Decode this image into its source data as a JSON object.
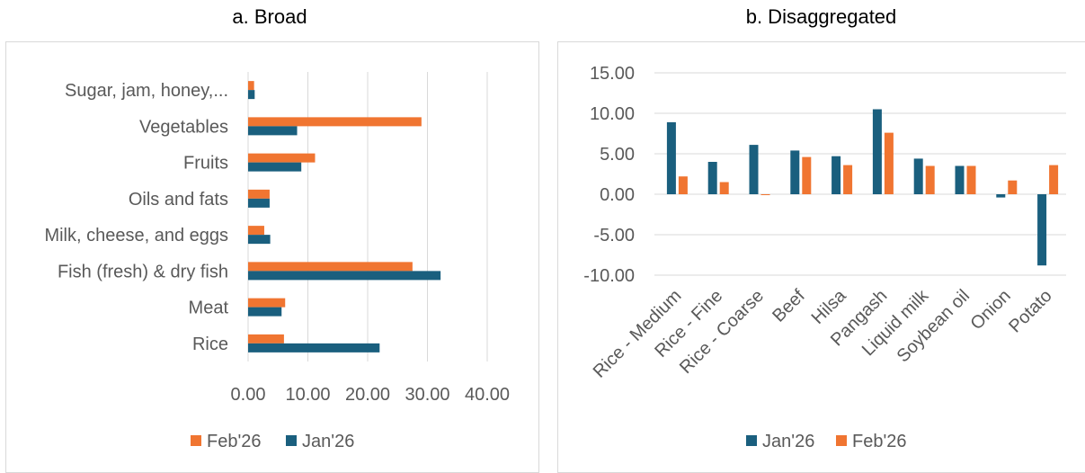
{
  "colors": {
    "jan": "#1a5f7e",
    "feb": "#f07531",
    "grid": "#d9d9d9"
  },
  "chart_data": [
    {
      "type": "bar",
      "orientation": "horizontal",
      "title": "a. Broad",
      "categories": [
        "Sugar, jam, honey,...",
        "Vegetables",
        "Fruits",
        "Oils and fats",
        "Milk, cheese, and eggs",
        "Fish (fresh) & dry fish",
        "Meat",
        "Rice"
      ],
      "series": [
        {
          "name": "Feb'26",
          "values": [
            1.0,
            29.0,
            11.2,
            3.6,
            2.7,
            27.5,
            6.2,
            6.0
          ]
        },
        {
          "name": "Jan'26",
          "values": [
            1.1,
            8.2,
            8.9,
            3.6,
            3.7,
            32.2,
            5.6,
            22.0
          ]
        }
      ],
      "xlim": [
        0,
        40
      ],
      "xticks": [
        "0.00",
        "10.00",
        "20.00",
        "30.00",
        "40.00"
      ],
      "grid": true,
      "legend": "bottom",
      "legend_order": [
        "Feb'26",
        "Jan'26"
      ]
    },
    {
      "type": "bar",
      "orientation": "vertical",
      "title": "b. Disaggregated",
      "categories": [
        "Rice - Medium",
        "Rice - Fine",
        "Rice - Coarse",
        "Beef",
        "Hilsa",
        "Pangash",
        "Liquid milk",
        "Soybean oil",
        "Onion",
        "Potato"
      ],
      "series": [
        {
          "name": "Jan'26",
          "values": [
            8.9,
            4.0,
            6.1,
            5.4,
            4.7,
            10.5,
            4.4,
            3.5,
            -0.4,
            -8.8
          ]
        },
        {
          "name": "Feb'26",
          "values": [
            2.2,
            1.5,
            -0.1,
            4.6,
            3.6,
            7.6,
            3.5,
            3.5,
            1.7,
            3.6
          ]
        }
      ],
      "ylim": [
        -10,
        15
      ],
      "yticks": [
        "15.00",
        "10.00",
        "5.00",
        "0.00",
        "-5.00",
        "-10.00"
      ],
      "grid": true,
      "legend": "bottom",
      "legend_order": [
        "Jan'26",
        "Feb'26"
      ]
    }
  ]
}
